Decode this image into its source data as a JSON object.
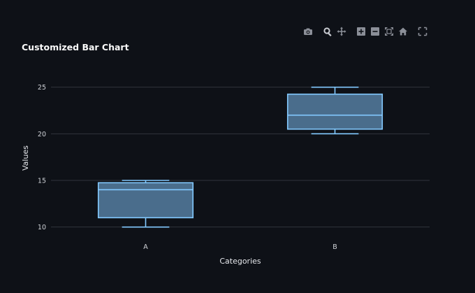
{
  "modebar": {
    "icons": [
      "camera-icon",
      "zoom-icon",
      "pan-icon",
      "zoom-in-icon",
      "zoom-out-icon",
      "autoscale-icon",
      "home-icon",
      "fullscreen-icon"
    ]
  },
  "colors": {
    "background": "#0e1117",
    "grid": "#30343c",
    "box_fill": "#4a6d8c",
    "box_line": "#83c9ff",
    "icon": "#8b8f98"
  },
  "chart_data": {
    "type": "box",
    "title": "Customized Bar Chart",
    "xlabel": "Categories",
    "ylabel": "Values",
    "categories": [
      "A",
      "B"
    ],
    "boxes": [
      {
        "category": "A",
        "min": 10,
        "q1": 11,
        "median": 14,
        "q3": 14.75,
        "max": 15
      },
      {
        "category": "B",
        "min": 20,
        "q1": 20.5,
        "median": 22,
        "q3": 24.25,
        "max": 25
      }
    ],
    "ylim": [
      9,
      27
    ],
    "yticks": [
      10,
      15,
      20,
      25
    ],
    "grid": true
  }
}
